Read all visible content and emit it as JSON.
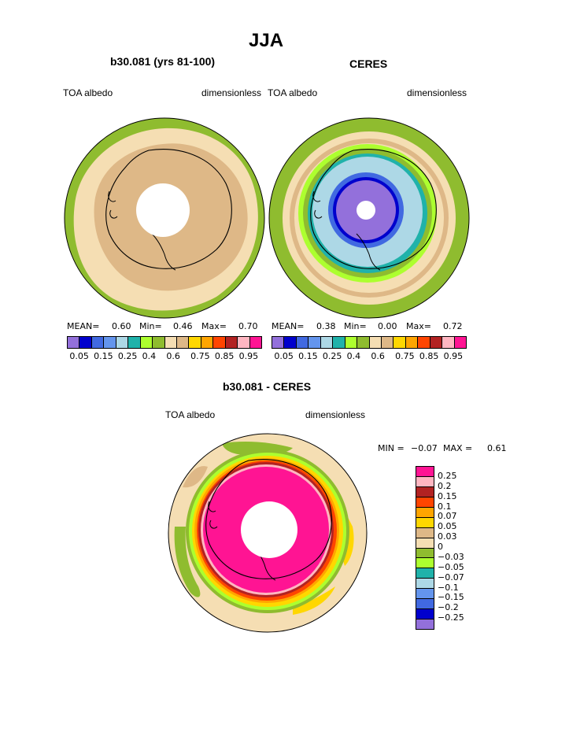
{
  "title": "JJA",
  "panels": [
    {
      "subtitle": "b30.081 (yrs 81-100)",
      "left_label": "TOA albedo",
      "right_label": "dimensionless",
      "stats": {
        "mean_label": "MEAN=",
        "mean": "0.60",
        "min_label": "Min=",
        "min": "0.46",
        "max_label": "Max=",
        "max": "0.70"
      }
    },
    {
      "subtitle": "CERES",
      "left_label": "TOA albedo",
      "right_label": "dimensionless",
      "stats": {
        "mean_label": "MEAN=",
        "mean": "0.38",
        "min_label": "Min=",
        "min": "0.00",
        "max_label": "Max=",
        "max": "0.72"
      }
    }
  ],
  "abs_colorbar": {
    "colors": [
      "#9370db",
      "#0000cd",
      "#4169e1",
      "#6495ed",
      "#add8e6",
      "#20b2aa",
      "#adff2f",
      "#8fbc2f",
      "#f5deb3",
      "#deb887",
      "#ffd700",
      "#ffa500",
      "#ff4500",
      "#b22222",
      "#ffb6c1",
      "#ff1493"
    ],
    "labels": [
      "0.05",
      "0.15",
      "0.25",
      "0.4",
      "0.6",
      "0.75",
      "0.85",
      "0.95"
    ]
  },
  "diff": {
    "subtitle": "b30.081 - CERES",
    "left_label": "TOA albedo",
    "right_label": "dimensionless",
    "min_label": "MIN =",
    "min": "−0.07",
    "max_label": "MAX =",
    "max": "0.61",
    "colorbar": {
      "colors": [
        "#ff1493",
        "#ffb6c1",
        "#b22222",
        "#ff4500",
        "#ffa500",
        "#ffd700",
        "#deb887",
        "#f5deb3",
        "#8fbc2f",
        "#adff2f",
        "#20b2aa",
        "#add8e6",
        "#6495ed",
        "#4169e1",
        "#0000cd",
        "#9370db"
      ],
      "labels": [
        "0.25",
        "0.2",
        "0.15",
        "0.1",
        "0.07",
        "0.05",
        "0.03",
        "0",
        "−0.03",
        "−0.05",
        "−0.07",
        "−0.1",
        "−0.15",
        "−0.2",
        "−0.25"
      ]
    }
  }
}
